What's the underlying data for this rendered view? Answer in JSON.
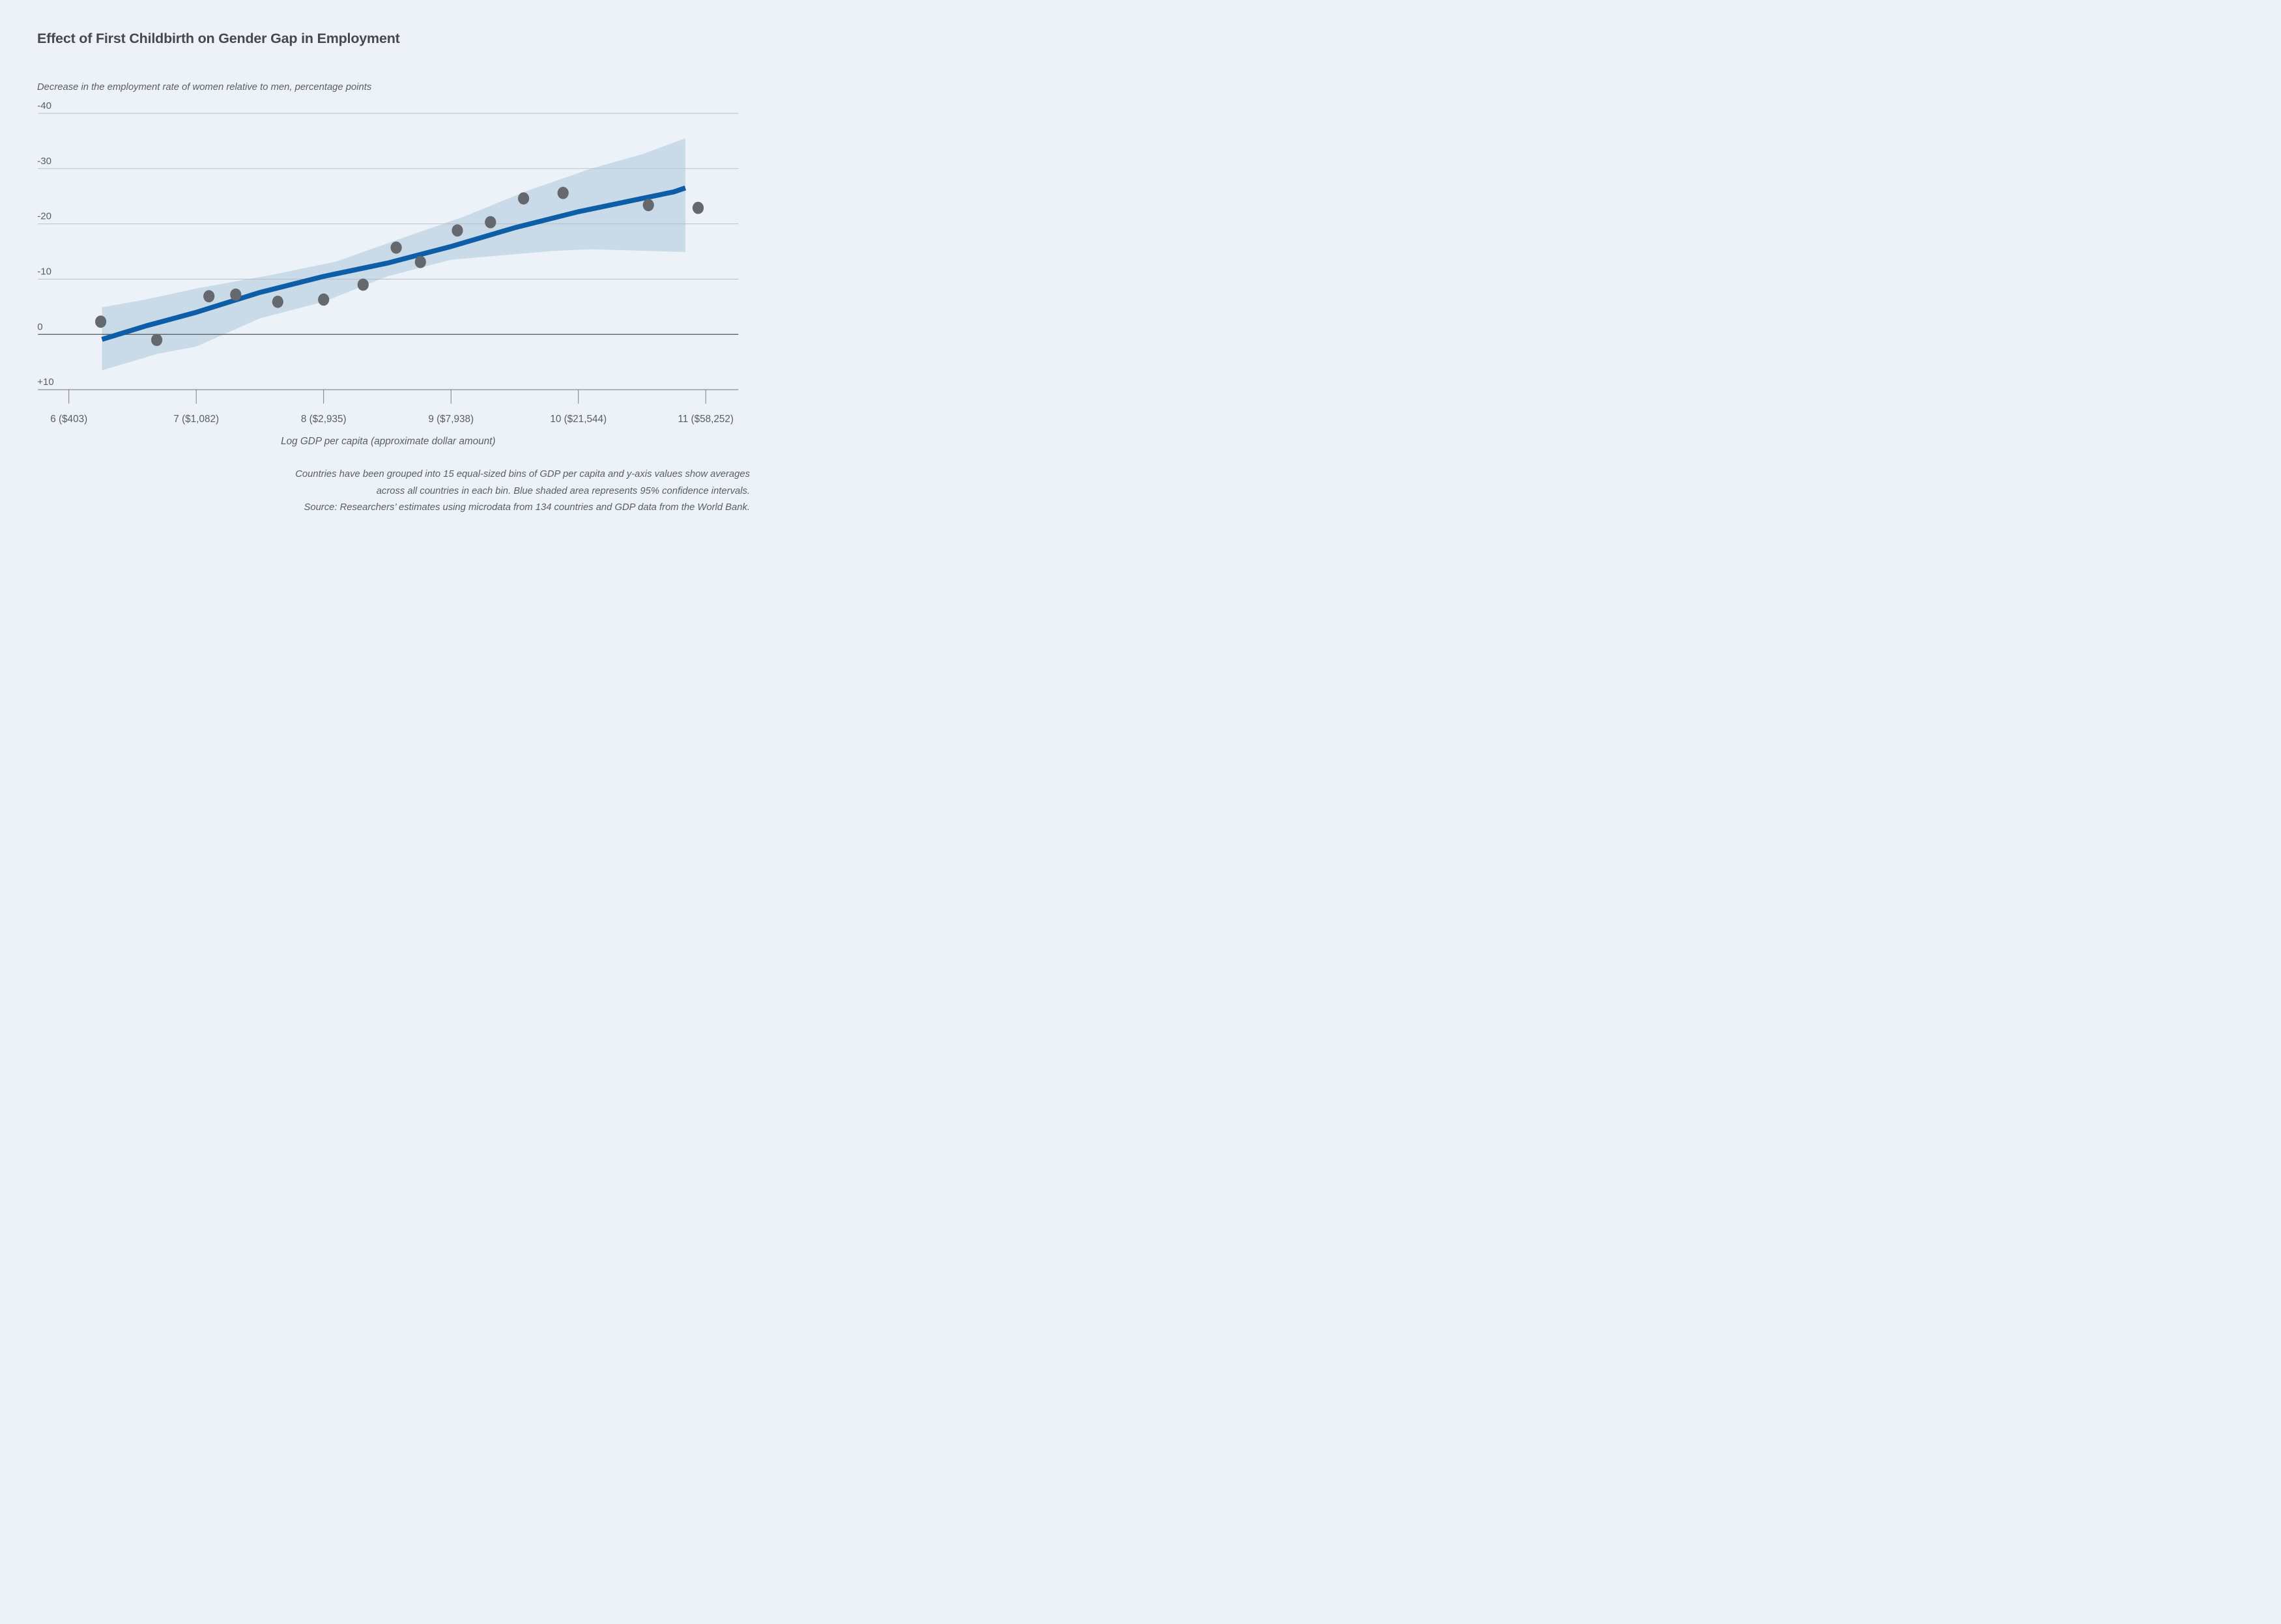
{
  "page": {
    "background": "#edf2f8"
  },
  "header": {
    "title": "Effect of First Childbirth on Gender Gap in Employment",
    "subtitle": "Decrease in the employment rate of women relative to men, percentage points"
  },
  "footnote": {
    "line1": "Countries have been grouped into 15 equal-sized bins of GDP per capita and y-axis values show averages",
    "line2": "across all countries in each bin. Blue shaded area represents 95% confidence intervals.",
    "source": "Source: Researchers’ estimates using microdata from 134 countries and GDP data from the World Bank."
  },
  "chart_data": {
    "type": "scatter",
    "title": "Effect of First Childbirth on Gender Gap in Employment",
    "ylabel": "Decrease in the employment rate of women relative to men, percentage points",
    "xlabel": "Log GDP per capita (approximate dollar amount)",
    "y_axis_inverted": true,
    "x_range": [
      5.76,
      11.26
    ],
    "y_range_plotted": [
      -41,
      12
    ],
    "grid": true,
    "legend_position": "none",
    "y_ticks": [
      {
        "value": -40,
        "label": "-40"
      },
      {
        "value": -30,
        "label": "-30"
      },
      {
        "value": -20,
        "label": "-20"
      },
      {
        "value": -10,
        "label": "-10"
      },
      {
        "value": 0,
        "label": "0"
      },
      {
        "value": 10,
        "label": "+10"
      }
    ],
    "x_ticks": [
      {
        "value": 6,
        "label": "6 ($403)"
      },
      {
        "value": 7,
        "label": "7 ($1,082)"
      },
      {
        "value": 8,
        "label": "8 ($2,935)"
      },
      {
        "value": 9,
        "label": "9 ($7,938)"
      },
      {
        "value": 10,
        "label": "10 ($21,544)"
      },
      {
        "value": 11,
        "label": "11 ($58,252)"
      }
    ],
    "points": [
      [
        6.25,
        -2.3
      ],
      [
        6.69,
        1.0
      ],
      [
        7.1,
        -6.9
      ],
      [
        7.31,
        -7.2
      ],
      [
        7.64,
        -5.9
      ],
      [
        8.0,
        -6.3
      ],
      [
        8.31,
        -9.0
      ],
      [
        8.57,
        -15.7
      ],
      [
        8.76,
        -13.1
      ],
      [
        9.05,
        -18.8
      ],
      [
        9.31,
        -20.3
      ],
      [
        9.57,
        -24.6
      ],
      [
        9.88,
        -25.6
      ],
      [
        10.55,
        -23.4
      ],
      [
        10.94,
        -22.9
      ]
    ],
    "trend": [
      [
        6.26,
        0.9
      ],
      [
        6.6,
        -1.5
      ],
      [
        7.0,
        -4.0
      ],
      [
        7.5,
        -7.6
      ],
      [
        8.0,
        -10.5
      ],
      [
        8.5,
        -12.9
      ],
      [
        9.0,
        -15.9
      ],
      [
        9.5,
        -19.3
      ],
      [
        10.0,
        -22.2
      ],
      [
        10.5,
        -24.6
      ],
      [
        10.75,
        -25.8
      ],
      [
        10.84,
        -26.5
      ]
    ],
    "band_top": [
      [
        6.26,
        -4.9
      ],
      [
        6.6,
        -6.3
      ],
      [
        7.0,
        -8.3
      ],
      [
        7.6,
        -10.8
      ],
      [
        8.1,
        -13.2
      ],
      [
        8.6,
        -17.3
      ],
      [
        9.1,
        -21.3
      ],
      [
        9.6,
        -26.0
      ],
      [
        10.1,
        -30.0
      ],
      [
        10.5,
        -32.6
      ],
      [
        10.84,
        -35.5
      ]
    ],
    "band_bottom": [
      [
        6.26,
        6.5
      ],
      [
        6.7,
        3.5
      ],
      [
        7.0,
        2.2
      ],
      [
        7.5,
        -2.9
      ],
      [
        8.0,
        -5.9
      ],
      [
        8.5,
        -10.5
      ],
      [
        9.0,
        -13.5
      ],
      [
        9.5,
        -14.5
      ],
      [
        9.8,
        -15.1
      ],
      [
        10.1,
        -15.4
      ],
      [
        10.4,
        -15.2
      ],
      [
        10.84,
        -14.9
      ]
    ],
    "colors": {
      "background": "#edf2f8",
      "band": "#c9dbe9",
      "trend_line": "#0d5ea6",
      "dot": "#65696d",
      "gridline": "#b6bcc2",
      "zero_line": "#5d6267",
      "axis_line": "#a9aeb4",
      "tick": "#6c7177",
      "text_primary": "#45484c",
      "text_secondary": "#595e63"
    }
  }
}
